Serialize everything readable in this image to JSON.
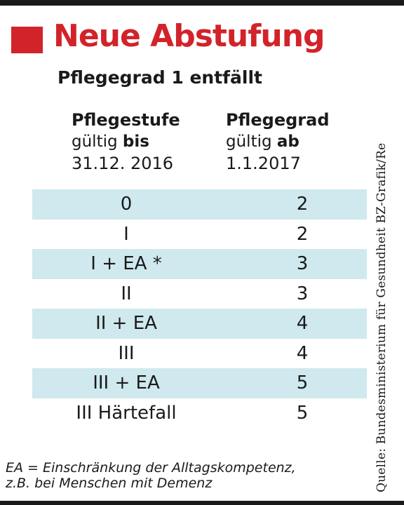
{
  "title": "Neue Abstufung",
  "subtitle": "Pflegegrad 1 entfällt",
  "columns": {
    "left": {
      "heading": "Pflegestufe",
      "valid_prefix": "gültig ",
      "valid_bold": "bis",
      "date": "31.12. 2016"
    },
    "right": {
      "heading": "Pflegegrad",
      "valid_prefix": "gültig ",
      "valid_bold": "ab",
      "date": "1.1.2017"
    }
  },
  "rows": [
    {
      "stufe": "0",
      "grad": "2"
    },
    {
      "stufe": "I",
      "grad": "2"
    },
    {
      "stufe": "I + EA *",
      "grad": "3"
    },
    {
      "stufe": "II",
      "grad": "3"
    },
    {
      "stufe": "II + EA",
      "grad": "4"
    },
    {
      "stufe": "III",
      "grad": "4"
    },
    {
      "stufe": "III + EA",
      "grad": "5"
    },
    {
      "stufe": "III Härtefall",
      "grad": "5"
    }
  ],
  "footnote": {
    "line1": "EA = Einschränkung der Alltagskompetenz,",
    "line2": "z.B. bei Menschen mit Demenz"
  },
  "source": "Quelle: Bundesministerium für Gesundheit   BZ-Grafik/Re",
  "colors": {
    "accent": "#d2232a",
    "row_shade": "#cfe9ee"
  }
}
